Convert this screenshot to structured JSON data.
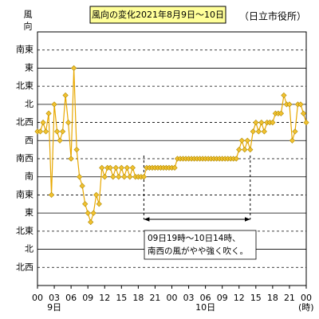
{
  "chart_data": {
    "type": "line",
    "title": "風向の変化2021年8月9日～10日",
    "subtitle": "（日立市役所）",
    "y_label": "風向",
    "x_unit": "(時)",
    "color": "#e8a800",
    "marker_color": "#f2c230",
    "grid": true,
    "xlim": [
      0,
      48
    ],
    "xticks": [
      {
        "value": 0,
        "label": "00"
      },
      {
        "value": 3,
        "label": "03"
      },
      {
        "value": 6,
        "label": "06"
      },
      {
        "value": 9,
        "label": "09"
      },
      {
        "value": 12,
        "label": "12"
      },
      {
        "value": 15,
        "label": "15"
      },
      {
        "value": 18,
        "label": "18"
      },
      {
        "value": 21,
        "label": "21"
      },
      {
        "value": 24,
        "label": "00"
      },
      {
        "value": 27,
        "label": "03"
      },
      {
        "value": 30,
        "label": "06"
      },
      {
        "value": 33,
        "label": "09"
      },
      {
        "value": 36,
        "label": "12"
      },
      {
        "value": 39,
        "label": "15"
      },
      {
        "value": 42,
        "label": "18"
      },
      {
        "value": 45,
        "label": "21"
      },
      {
        "value": 48,
        "label": "00"
      }
    ],
    "day_labels": [
      {
        "value": 3,
        "label": "9日"
      },
      {
        "value": 30,
        "label": "10日"
      }
    ],
    "ylim": [
      0,
      14
    ],
    "yticks": [
      {
        "value": 1,
        "label": "北西"
      },
      {
        "value": 2,
        "label": "北"
      },
      {
        "value": 3,
        "label": "北東"
      },
      {
        "value": 4,
        "label": "東"
      },
      {
        "value": 5,
        "label": "南東"
      },
      {
        "value": 6,
        "label": "南"
      },
      {
        "value": 7,
        "label": "南西"
      },
      {
        "value": 8,
        "label": "西"
      },
      {
        "value": 9,
        "label": "北西"
      },
      {
        "value": 10,
        "label": "北"
      },
      {
        "value": 11,
        "label": "北東"
      },
      {
        "value": 12,
        "label": "東"
      },
      {
        "value": 13,
        "label": "南東"
      }
    ],
    "x": [
      0,
      0.5,
      1,
      1.5,
      2,
      2.5,
      3,
      3.5,
      4,
      4.5,
      5,
      5.5,
      6,
      6.5,
      7,
      7.5,
      8,
      8.5,
      9,
      9.5,
      10,
      10.5,
      11,
      11.5,
      12,
      12.5,
      13,
      13.5,
      14,
      14.5,
      15,
      15.5,
      16,
      16.5,
      17,
      17.5,
      18,
      18.5,
      19,
      19.5,
      20,
      20.5,
      21,
      21.5,
      22,
      22.5,
      23,
      23.5,
      24,
      24.5,
      25,
      25.5,
      26,
      26.5,
      27,
      27.5,
      28,
      28.5,
      29,
      29.5,
      30,
      30.5,
      31,
      31.5,
      32,
      32.5,
      33,
      33.5,
      34,
      34.5,
      35,
      35.5,
      36,
      36.5,
      37,
      37.5,
      38,
      38.5,
      39,
      39.5,
      40,
      40.5,
      41,
      41.5,
      42,
      42.5,
      43,
      43.5,
      44,
      44.5,
      45,
      45.5,
      46,
      46.5,
      47,
      47.5,
      48
    ],
    "values": [
      8.5,
      8.5,
      9,
      8.5,
      9.5,
      5,
      10,
      8.5,
      8,
      8.5,
      10.5,
      9,
      7,
      12,
      7.5,
      6,
      5.5,
      4.5,
      4,
      3.5,
      4,
      5,
      4.5,
      6.5,
      6,
      6.5,
      6.5,
      6,
      6.5,
      6,
      6.5,
      6,
      6.5,
      6,
      6.5,
      6,
      6,
      6,
      6,
      6.5,
      6.5,
      6.5,
      6.5,
      6.5,
      6.5,
      6.5,
      6.5,
      6.5,
      6.5,
      6.5,
      7,
      7,
      7,
      7,
      7,
      7,
      7,
      7,
      7,
      7,
      7,
      7,
      7,
      7,
      7,
      7,
      7,
      7,
      7,
      7,
      7,
      7,
      7.5,
      8,
      7.5,
      8,
      7.5,
      8.5,
      9,
      8.5,
      9,
      8.5,
      9,
      9,
      9,
      9.5,
      9.5,
      9.5,
      10.5,
      10,
      10,
      8,
      8.5,
      10,
      10,
      9.5,
      9
    ],
    "annotation": {
      "text": [
        "09日19時～10日14時、",
        "南西の風がやや強く吹く。"
      ],
      "x_range": [
        19,
        38
      ]
    }
  }
}
